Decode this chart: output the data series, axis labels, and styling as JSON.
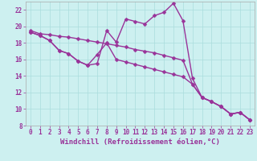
{
  "xlabel": "Windchill (Refroidissement éolien,°C)",
  "ylabel": "",
  "background_color": "#cdf0f0",
  "grid_color": "#aadddd",
  "line_color": "#993399",
  "xlim": [
    -0.5,
    23.5
  ],
  "ylim": [
    8,
    23
  ],
  "xticks": [
    0,
    1,
    2,
    3,
    4,
    5,
    6,
    7,
    8,
    9,
    10,
    11,
    12,
    13,
    14,
    15,
    16,
    17,
    18,
    19,
    20,
    21,
    22,
    23
  ],
  "yticks": [
    8,
    10,
    12,
    14,
    16,
    18,
    20,
    22
  ],
  "line1_x": [
    0,
    1,
    2,
    3,
    4,
    5,
    6,
    7,
    8,
    9,
    10,
    11,
    12,
    13,
    14,
    15,
    16,
    17,
    18,
    19,
    20,
    21,
    22,
    23
  ],
  "line1_y": [
    19.3,
    18.9,
    18.3,
    17.1,
    16.7,
    15.8,
    15.3,
    15.5,
    19.5,
    18.1,
    20.9,
    20.6,
    20.3,
    21.3,
    21.7,
    22.8,
    20.7,
    13.7,
    11.4,
    10.9,
    10.3,
    9.4,
    9.6,
    8.7
  ],
  "line2_x": [
    0,
    1,
    2,
    3,
    4,
    5,
    6,
    7,
    8,
    9,
    10,
    11,
    12,
    13,
    14,
    15,
    16,
    17,
    18,
    19,
    20,
    21,
    22,
    23
  ],
  "line2_y": [
    19.3,
    18.9,
    18.3,
    17.1,
    16.7,
    15.8,
    15.3,
    16.6,
    18.0,
    16.0,
    15.7,
    15.4,
    15.1,
    14.8,
    14.5,
    14.2,
    13.9,
    13.0,
    11.4,
    10.9,
    10.3,
    9.4,
    9.6,
    8.7
  ],
  "line3_x": [
    0,
    1,
    2,
    3,
    4,
    5,
    6,
    7,
    8,
    9,
    10,
    11,
    12,
    13,
    14,
    15,
    16,
    17,
    18,
    19,
    20,
    21,
    22,
    23
  ],
  "line3_y": [
    19.5,
    19.1,
    19.0,
    18.8,
    18.7,
    18.5,
    18.3,
    18.1,
    17.9,
    17.7,
    17.5,
    17.2,
    17.0,
    16.8,
    16.5,
    16.2,
    15.9,
    13.0,
    11.4,
    10.9,
    10.3,
    9.4,
    9.6,
    8.7
  ],
  "marker": "D",
  "markersize": 2.5,
  "linewidth": 1.0,
  "tick_fontsize": 5.5,
  "xlabel_fontsize": 6.5,
  "xlabel_bold": true
}
